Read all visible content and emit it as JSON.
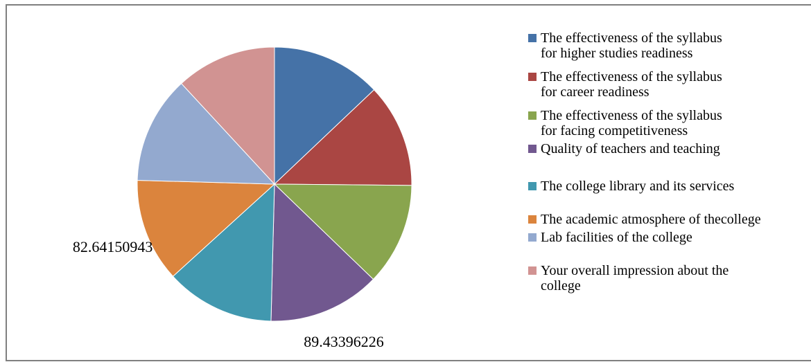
{
  "chart_data": {
    "type": "pie",
    "categories": [
      "The effectiveness of the syllabus\nfor higher studies readiness",
      "The effectiveness of the syllabus\nfor career readiness",
      "The effectiveness of the syllabus\nfor facing competitiveness",
      "Quality of teachers and teaching",
      "The college library and its services",
      "The academic atmosphere of thecollege",
      "Lab facilities of the college",
      "Your overall impression about the\ncollege"
    ],
    "values": [
      87.6,
      82.9,
      81.8,
      89.43396226,
      87.1,
      82.64150943,
      86.0,
      80.5
    ],
    "colors": [
      "#4572A7",
      "#AA4643",
      "#89A54E",
      "#71588F",
      "#4198AF",
      "#DB843D",
      "#93A9CF",
      "#D19392"
    ],
    "data_labels": [
      "",
      "",
      "",
      "89.43396226",
      "",
      "82.64150943",
      "",
      ""
    ],
    "legend": "right"
  }
}
